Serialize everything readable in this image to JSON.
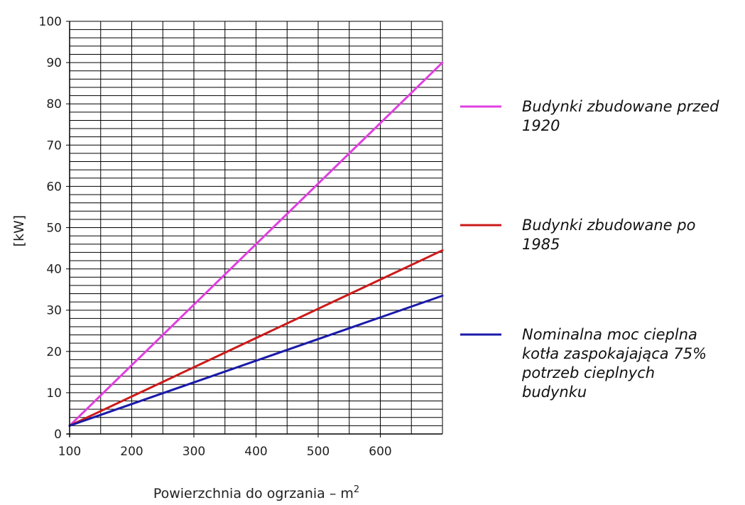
{
  "chart_data": {
    "type": "line",
    "xlabel": "Powierzchnia do ogrzania – m",
    "xlabel_sup": "2",
    "ylabel": "[kW]",
    "xlim": [
      100,
      700
    ],
    "ylim": [
      0,
      100
    ],
    "x_ticks": [
      "100",
      "200",
      "300",
      "400",
      "500",
      "600"
    ],
    "y_ticks": [
      "0",
      "10",
      "20",
      "30",
      "40",
      "50",
      "60",
      "70",
      "80",
      "90",
      "100"
    ],
    "grid": true,
    "legend_position": "right",
    "series": [
      {
        "name": "Budynki zbudowane przed 1920",
        "legend_lines": [
          "Budynki zbudowane przed",
          "1920"
        ],
        "color": "#e040e0",
        "x": [
          100,
          700
        ],
        "y": [
          2,
          90
        ]
      },
      {
        "name": "Budynki zbudowane po 1985",
        "legend_lines": [
          "Budynki zbudowane po",
          "1985"
        ],
        "color": "#cc1a1a",
        "x": [
          100,
          700
        ],
        "y": [
          2,
          44.5
        ]
      },
      {
        "name": "Nominalna moc cieplna kotła zaspokajająca 75% potrzeb cieplnych budynku",
        "legend_lines": [
          "Nominalna moc cieplna",
          "kotła zaspokajająca 75%",
          "potrzeb cieplnych",
          "budynku"
        ],
        "color": "#1a1aaa",
        "x": [
          100,
          700
        ],
        "y": [
          2,
          33.5
        ]
      }
    ]
  }
}
